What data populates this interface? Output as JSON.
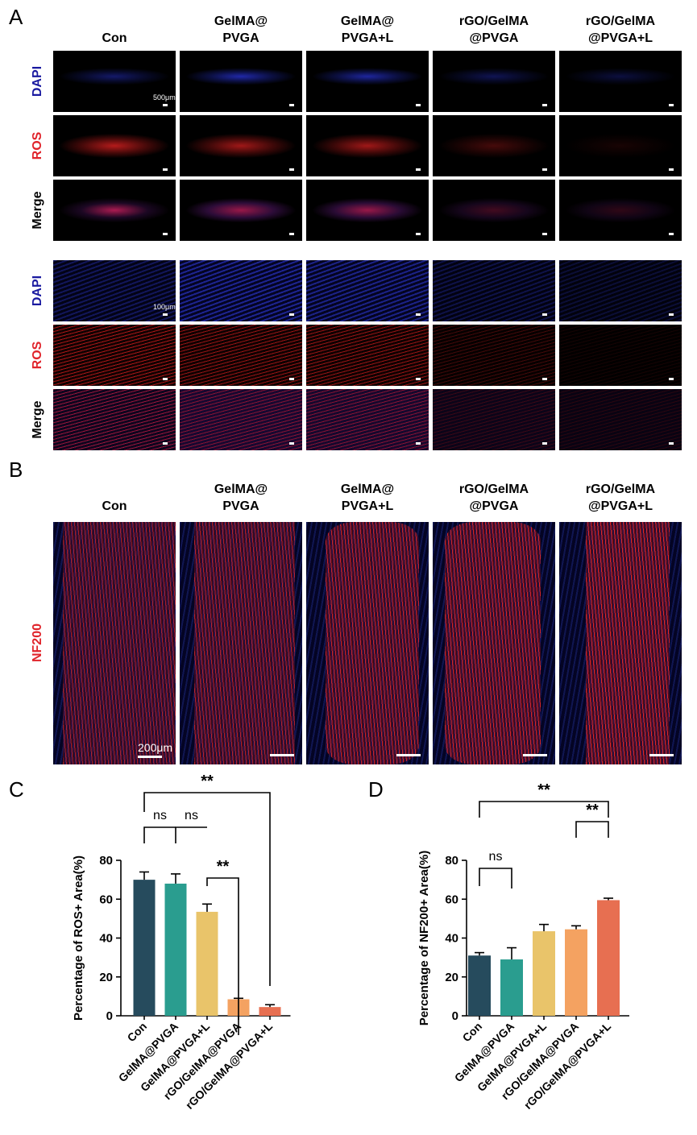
{
  "panels": {
    "a": "A",
    "b": "B",
    "c": "C",
    "d": "D"
  },
  "groups_top": [
    {
      "line1": "Con",
      "line2": ""
    },
    {
      "line1": "GelMA@",
      "line2": "PVGA"
    },
    {
      "line1": "GelMA@",
      "line2": "PVGA+L"
    },
    {
      "line1": "rGO/GelMA",
      "line2": "@PVGA"
    },
    {
      "line1": "rGO/GelMA",
      "line2": "@PVGA+L"
    }
  ],
  "row_labels": {
    "dapi": "DAPI",
    "ros": "ROS",
    "merge": "Merge",
    "nf200": "NF200"
  },
  "scale_bars": {
    "low_mag": "500μm",
    "high_mag": "100μm",
    "nf": "200μm"
  },
  "colors": {
    "dapi_label": "#1a1aa0",
    "ros_label": "#e0242b",
    "merge_label": "#000000",
    "bar_con": "#264b5d",
    "bar_gelma": "#2a9d8f",
    "bar_gelma_l": "#e9c46a",
    "bar_rgo": "#f4a261",
    "bar_rgo_l": "#e76f51"
  },
  "chart_data": [
    {
      "type": "bar",
      "panel": "C",
      "categories": [
        "Con",
        "GelMA@PVGA",
        "GelMA@PVGA+L",
        "rGO/GelMA@PVGA",
        "rGO/GelMA@PVGA+L"
      ],
      "values": [
        70,
        68,
        53.5,
        8.5,
        4.5
      ],
      "errors": [
        4,
        5,
        4,
        0.5,
        1.2
      ],
      "ylabel": "Percentage of ROS+ Area(%)",
      "ylim": [
        0,
        80
      ],
      "yticks": [
        0,
        20,
        40,
        60,
        80
      ],
      "significance": [
        {
          "from": 0,
          "to": 1,
          "label": "ns"
        },
        {
          "from": 1,
          "to": 2,
          "label": "ns"
        },
        {
          "from": 2,
          "to": 3,
          "label": "**"
        },
        {
          "from": 0,
          "to": 4,
          "label": "**"
        }
      ]
    },
    {
      "type": "bar",
      "panel": "D",
      "categories": [
        "Con",
        "GelMA@PVGA",
        "GelMA@PVGA+L",
        "rGO/GelMA@PVGA",
        "rGO/GelMA@PVGA+L"
      ],
      "values": [
        31,
        29,
        43.5,
        44.5,
        59.5
      ],
      "errors": [
        1.5,
        6,
        3.5,
        1.8,
        1
      ],
      "ylabel": "Percentage of NF200+ Area(%)",
      "ylim": [
        0,
        80
      ],
      "yticks": [
        0,
        20,
        40,
        60,
        80
      ],
      "significance": [
        {
          "from": 0,
          "to": 1,
          "label": "ns"
        },
        {
          "from": 3,
          "to": 4,
          "label": "**"
        },
        {
          "from": 0,
          "to": 4,
          "label": "**"
        }
      ]
    }
  ]
}
